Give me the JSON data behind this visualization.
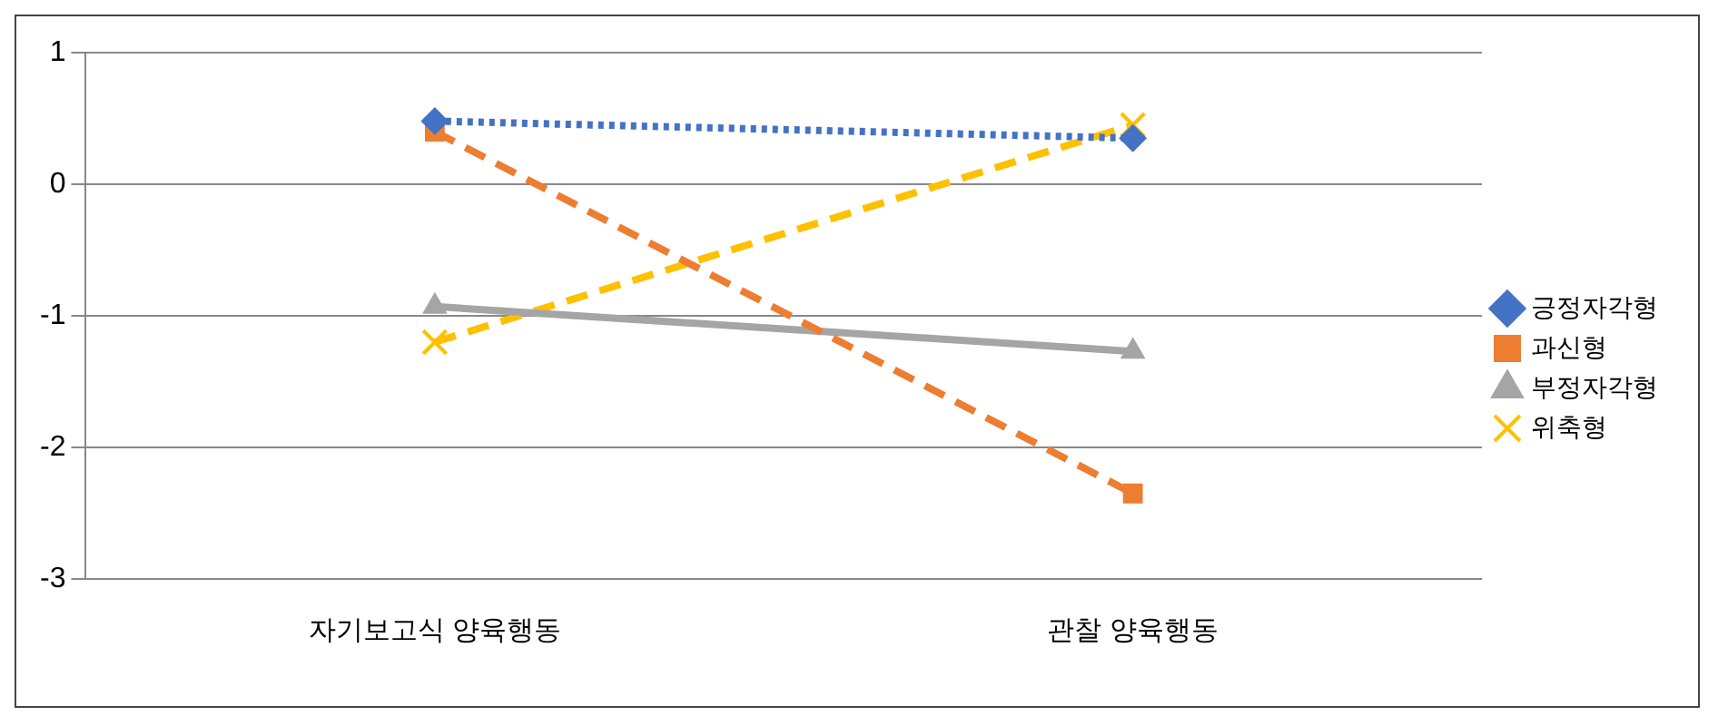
{
  "chart_data": {
    "type": "line",
    "categories": [
      "자기보고식 양육행동",
      "관찰 양육행동"
    ],
    "series": [
      {
        "name": "긍정자각형",
        "color": "#4472c4",
        "values": [
          0.48,
          0.35
        ],
        "marker": "diamond",
        "line_style": "dotted"
      },
      {
        "name": "과신형",
        "color": "#ed7d31",
        "values": [
          0.4,
          -2.35
        ],
        "marker": "square",
        "line_style": "dashed"
      },
      {
        "name": "부정자각형",
        "color": "#a5a5a5",
        "values": [
          -0.93,
          -1.27
        ],
        "marker": "triangle",
        "line_style": "solid"
      },
      {
        "name": "위축형",
        "color": "#ffc000",
        "values": [
          -1.2,
          0.45
        ],
        "marker": "cross",
        "line_style": "dashed"
      }
    ],
    "ylim": [
      -3,
      1
    ],
    "yticks": [
      -3,
      -2,
      -1,
      0,
      1
    ],
    "grid": "y",
    "legend": "right"
  }
}
